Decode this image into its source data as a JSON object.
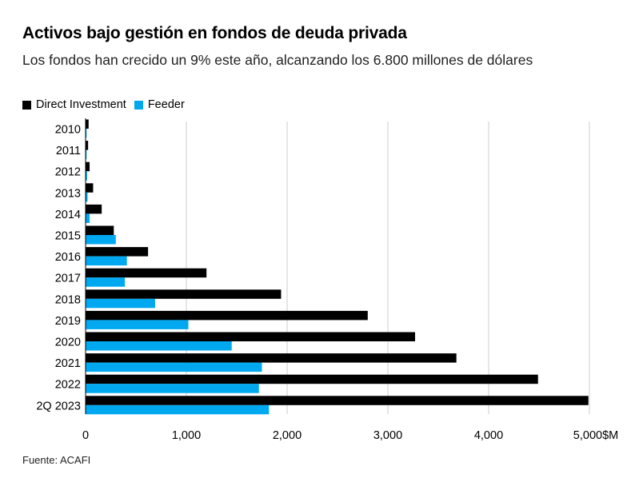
{
  "header": {
    "title": "Activos bajo gestión en fondos de deuda privada",
    "subtitle": "Los fondos han crecido un 9% este año, alcanzando los 6.800 millones de dólares"
  },
  "footer": {
    "source": "Fuente: ACAFI"
  },
  "colors": {
    "direct": "#000000",
    "feeder": "#00a8f0",
    "grid": "#cccccc"
  },
  "chart_data": {
    "type": "bar",
    "orientation": "horizontal",
    "title": "Activos bajo gestión en fondos de deuda privada",
    "subtitle": "Los fondos han crecido un 9% este año, alcanzando los 6.800 millones de dólares",
    "categories": [
      "2010",
      "2011",
      "2012",
      "2013",
      "2014",
      "2015",
      "2016",
      "2017",
      "2018",
      "2019",
      "2020",
      "2021",
      "2022",
      "2Q 2023"
    ],
    "series": [
      {
        "name": "Direct Investment",
        "values": [
          30,
          25,
          40,
          75,
          160,
          280,
          620,
          1200,
          1940,
          2800,
          3270,
          3680,
          4490,
          4990
        ]
      },
      {
        "name": "Feeder",
        "values": [
          10,
          10,
          15,
          20,
          40,
          300,
          410,
          390,
          690,
          1020,
          1450,
          1750,
          1720,
          1820
        ]
      }
    ],
    "xlim": [
      0,
      5000
    ],
    "xticks": [
      0,
      1000,
      2000,
      3000,
      4000,
      5000
    ],
    "xtick_labels": [
      "0",
      "1,000",
      "2,000",
      "3,000",
      "4,000",
      "5,000$M"
    ],
    "legend_position": "top-left",
    "grid": "vertical"
  }
}
